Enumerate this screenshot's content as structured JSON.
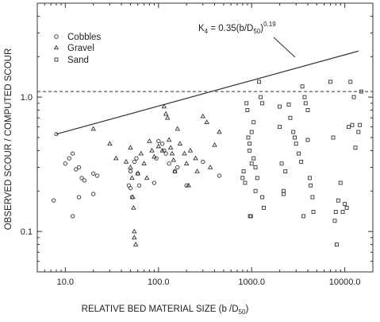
{
  "chart_data": {
    "type": "scatter",
    "xscale": "log",
    "yscale": "log",
    "xlim": [
      5,
      20000
    ],
    "ylim": [
      0.05,
      5
    ],
    "xticks": [
      {
        "value": 10,
        "label": "10.0"
      },
      {
        "value": 100,
        "label": "100.0"
      },
      {
        "value": 1000,
        "label": "1000.0"
      },
      {
        "value": 10000,
        "label": "10000.0"
      }
    ],
    "yticks": [
      {
        "value": 0.1,
        "label": "0.1"
      },
      {
        "value": 1.0,
        "label": "1.0"
      }
    ],
    "xlabel": "RELATIVE BED MATERIAL SIZE (b /D",
    "xlabel_sub": "50",
    "xlabel_end": ")",
    "ylabel": "OBSERVED SCOUR / COMPUTED SCOUR",
    "legend_position": "top-left",
    "reference_line": {
      "y": 1.1,
      "style": "dashed"
    },
    "fit_line": {
      "x": [
        8,
        14000
      ],
      "y": [
        0.53,
        2.2
      ],
      "label_main": "K",
      "label_sub1": "4",
      "label_mid": " = 0.35(b/D",
      "label_sub2": "50",
      "label_end": ")",
      "label_exp": "0.19"
    },
    "series": [
      {
        "name": "Cobbles",
        "marker": "circle",
        "points": [
          [
            7.5,
            0.17
          ],
          [
            10,
            0.32
          ],
          [
            11,
            0.35
          ],
          [
            12,
            0.38
          ],
          [
            13,
            0.29
          ],
          [
            14,
            0.3
          ],
          [
            15,
            0.25
          ],
          [
            16,
            0.24
          ],
          [
            14,
            0.18
          ],
          [
            12,
            0.13
          ],
          [
            20,
            0.27
          ],
          [
            20,
            0.19
          ],
          [
            22,
            0.26
          ],
          [
            48,
            0.22
          ],
          [
            50,
            0.21
          ],
          [
            50,
            0.28
          ],
          [
            52,
            0.18
          ],
          [
            55,
            0.33
          ],
          [
            58,
            0.35
          ],
          [
            60,
            0.27
          ],
          [
            62,
            0.22
          ],
          [
            90,
            0.23
          ],
          [
            95,
            0.35
          ],
          [
            100,
            0.47
          ],
          [
            110,
            0.45
          ],
          [
            115,
            0.4
          ],
          [
            120,
            0.38
          ],
          [
            130,
            0.32
          ],
          [
            150,
            0.28
          ],
          [
            160,
            0.3
          ],
          [
            200,
            0.22
          ],
          [
            300,
            0.33
          ],
          [
            450,
            0.26
          ]
        ]
      },
      {
        "name": "Gravel",
        "marker": "triangle",
        "points": [
          [
            20,
            0.58
          ],
          [
            30,
            0.45
          ],
          [
            35,
            0.35
          ],
          [
            45,
            0.33
          ],
          [
            50,
            0.42
          ],
          [
            50,
            0.3
          ],
          [
            52,
            0.25
          ],
          [
            53,
            0.18
          ],
          [
            54,
            0.15
          ],
          [
            55,
            0.1
          ],
          [
            55,
            0.09
          ],
          [
            57,
            0.08
          ],
          [
            60,
            0.27
          ],
          [
            65,
            0.38
          ],
          [
            70,
            0.32
          ],
          [
            75,
            0.25
          ],
          [
            80,
            0.47
          ],
          [
            85,
            0.4
          ],
          [
            90,
            0.36
          ],
          [
            100,
            0.43
          ],
          [
            110,
            0.4
          ],
          [
            115,
            0.85
          ],
          [
            120,
            0.75
          ],
          [
            125,
            0.7
          ],
          [
            130,
            0.48
          ],
          [
            135,
            0.42
          ],
          [
            140,
            0.38
          ],
          [
            145,
            0.34
          ],
          [
            150,
            0.28
          ],
          [
            160,
            0.58
          ],
          [
            170,
            0.45
          ],
          [
            190,
            0.38
          ],
          [
            200,
            0.32
          ],
          [
            210,
            0.22
          ],
          [
            220,
            0.4
          ],
          [
            250,
            0.35
          ],
          [
            260,
            0.28
          ],
          [
            300,
            0.72
          ],
          [
            330,
            0.65
          ],
          [
            360,
            0.3
          ],
          [
            400,
            0.44
          ],
          [
            450,
            0.55
          ]
        ]
      },
      {
        "name": "Sand",
        "marker": "square",
        "points": [
          [
            800,
            0.25
          ],
          [
            820,
            0.28
          ],
          [
            850,
            0.23
          ],
          [
            880,
            0.9
          ],
          [
            900,
            0.8
          ],
          [
            920,
            0.5
          ],
          [
            950,
            0.45
          ],
          [
            950,
            0.4
          ],
          [
            960,
            0.13
          ],
          [
            980,
            0.13
          ],
          [
            1000,
            0.32
          ],
          [
            1000,
            0.55
          ],
          [
            1050,
            0.65
          ],
          [
            1050,
            0.35
          ],
          [
            1100,
            0.3
          ],
          [
            1100,
            0.2
          ],
          [
            1150,
            0.25
          ],
          [
            1200,
            1.3
          ],
          [
            1250,
            1.0
          ],
          [
            1300,
            0.9
          ],
          [
            1300,
            0.18
          ],
          [
            1350,
            0.15
          ],
          [
            2000,
            0.85
          ],
          [
            2000,
            0.6
          ],
          [
            2100,
            0.32
          ],
          [
            2200,
            0.2
          ],
          [
            2200,
            0.19
          ],
          [
            2300,
            0.28
          ],
          [
            2500,
            0.88
          ],
          [
            2600,
            0.7
          ],
          [
            2800,
            0.55
          ],
          [
            2900,
            0.5
          ],
          [
            3000,
            0.45
          ],
          [
            3200,
            0.38
          ],
          [
            3400,
            0.33
          ],
          [
            3500,
            1.2
          ],
          [
            3600,
            0.13
          ],
          [
            3700,
            1.0
          ],
          [
            3800,
            0.9
          ],
          [
            4000,
            0.8
          ],
          [
            4000,
            0.48
          ],
          [
            4200,
            0.25
          ],
          [
            4300,
            0.22
          ],
          [
            4500,
            0.18
          ],
          [
            4600,
            0.14
          ],
          [
            7000,
            1.3
          ],
          [
            7500,
            0.5
          ],
          [
            7800,
            0.12
          ],
          [
            8000,
            0.14
          ],
          [
            8200,
            0.08
          ],
          [
            8500,
            0.17
          ],
          [
            9000,
            0.23
          ],
          [
            9500,
            0.14
          ],
          [
            10000,
            0.16
          ],
          [
            10500,
            0.15
          ],
          [
            11000,
            0.6
          ],
          [
            11500,
            1.3
          ],
          [
            12000,
            0.62
          ],
          [
            12500,
            1.0
          ],
          [
            13000,
            0.42
          ],
          [
            14000,
            0.55
          ],
          [
            14500,
            0.62
          ],
          [
            15000,
            1.1
          ]
        ]
      }
    ]
  }
}
